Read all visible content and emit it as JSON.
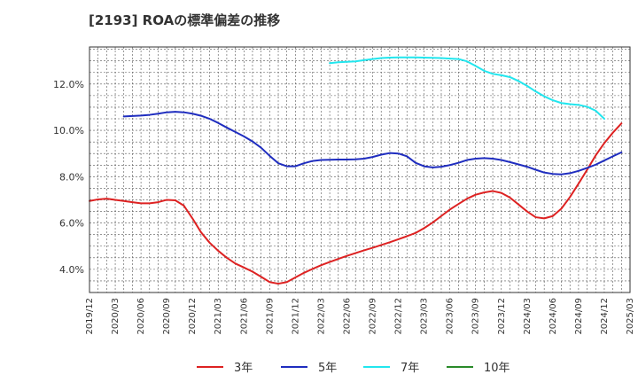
{
  "chart_data": {
    "type": "line",
    "title": "[2193]  ROAの標準偏差の推移",
    "xlabel": "",
    "ylabel": "",
    "grid": true,
    "legend_position": "bottom",
    "x_ticks": [
      "2019/12",
      "2020/03",
      "2020/06",
      "2020/09",
      "2020/12",
      "2021/03",
      "2021/06",
      "2021/09",
      "2021/12",
      "2022/03",
      "2022/06",
      "2022/09",
      "2022/12",
      "2023/03",
      "2023/06",
      "2023/09",
      "2023/12",
      "2024/03",
      "2024/06",
      "2024/09",
      "2024/12",
      "2025/03"
    ],
    "y_ticks": [
      4.0,
      6.0,
      8.0,
      10.0,
      12.0
    ],
    "y_tick_labels": [
      "4.0%",
      "6.0%",
      "8.0%",
      "10.0%",
      "12.0%"
    ],
    "ylim": [
      3.0,
      13.6
    ],
    "series": [
      {
        "name": "3年",
        "color": "#dd2222",
        "start": "2019/12",
        "values": [
          6.95,
          7.02,
          7.05,
          7.0,
          6.95,
          6.9,
          6.85,
          6.85,
          6.9,
          7.0,
          6.98,
          6.75,
          6.2,
          5.6,
          5.15,
          4.8,
          4.5,
          4.25,
          4.08,
          3.9,
          3.68,
          3.45,
          3.38,
          3.45,
          3.65,
          3.85,
          4.02,
          4.18,
          4.32,
          4.45,
          4.58,
          4.7,
          4.82,
          4.93,
          5.05,
          5.17,
          5.3,
          5.43,
          5.57,
          5.78,
          6.02,
          6.3,
          6.58,
          6.82,
          7.05,
          7.22,
          7.32,
          7.38,
          7.3,
          7.1,
          6.8,
          6.5,
          6.25,
          6.2,
          6.3,
          6.62,
          7.12,
          7.7,
          8.3,
          8.92,
          9.45,
          9.9,
          10.3
        ]
      },
      {
        "name": "5年",
        "color": "#1f2dbf",
        "start": "2020/04",
        "values": [
          10.6,
          10.62,
          10.64,
          10.67,
          10.72,
          10.78,
          10.8,
          10.78,
          10.72,
          10.63,
          10.5,
          10.32,
          10.12,
          9.93,
          9.74,
          9.52,
          9.25,
          8.9,
          8.58,
          8.45,
          8.45,
          8.58,
          8.68,
          8.72,
          8.73,
          8.74,
          8.74,
          8.75,
          8.78,
          8.85,
          8.95,
          9.02,
          9.0,
          8.88,
          8.6,
          8.45,
          8.4,
          8.43,
          8.5,
          8.6,
          8.72,
          8.78,
          8.8,
          8.78,
          8.72,
          8.63,
          8.53,
          8.43,
          8.3,
          8.18,
          8.12,
          8.1,
          8.15,
          8.25,
          8.38,
          8.52,
          8.7,
          8.88,
          9.05
        ]
      },
      {
        "name": "7年",
        "color": "#22e6ee",
        "start": "2022/04",
        "values": [
          12.9,
          12.94,
          12.96,
          12.98,
          13.03,
          13.08,
          13.12,
          13.14,
          13.15,
          13.15,
          13.15,
          13.14,
          13.13,
          13.12,
          13.1,
          13.08,
          12.98,
          12.78,
          12.57,
          12.44,
          12.38,
          12.3,
          12.13,
          11.92,
          11.68,
          11.47,
          11.3,
          11.18,
          11.13,
          11.1,
          11.02,
          10.85,
          10.5
        ]
      },
      {
        "name": "10年",
        "color": "#2a8a2a",
        "start": "2024/12",
        "values": []
      }
    ]
  }
}
